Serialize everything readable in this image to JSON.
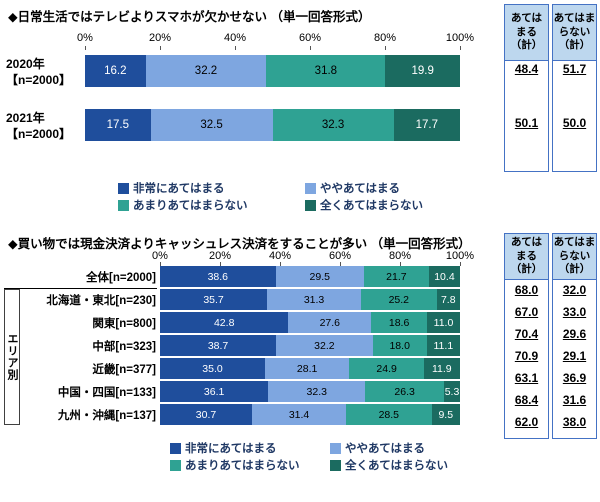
{
  "colors": {
    "segments": [
      "#1F4E9C",
      "#7EA6E0",
      "#2FA293",
      "#1B6B60"
    ],
    "segment_text": [
      "#ffffff",
      "#000000",
      "#000000",
      "#ffffff"
    ],
    "summary_header_fill": "#BDD7EE",
    "summary_border": "#4472C4",
    "legend_text": "#1F3864"
  },
  "summary_headers": {
    "agree": "あては\nまる\n（計）",
    "disagree": "あてはま\nらない\n（計）"
  },
  "legend": {
    "items": [
      {
        "label": "非常にあてはまる",
        "color": "#1F4E9C"
      },
      {
        "label": "ややあてはまる",
        "color": "#7EA6E0"
      },
      {
        "label": "あまりあてはまらない",
        "color": "#2FA293"
      },
      {
        "label": "全くあてはまらない",
        "color": "#1B6B60"
      }
    ]
  },
  "chart_data": [
    {
      "type": "bar",
      "stacked": true,
      "orientation": "horizontal",
      "title": "◆日常生活ではテレビよりスマホが欠かせない （単一回答形式）",
      "x_ticks": [
        "0%",
        "20%",
        "40%",
        "60%",
        "80%",
        "100%"
      ],
      "xlim": [
        0,
        100
      ],
      "series_labels": [
        "非常にあてはまる",
        "ややあてはまる",
        "あまりあてはまらない",
        "全くあてはまらない"
      ],
      "rows": [
        {
          "label": "2020年",
          "n_label": "【n=2000】",
          "values": [
            16.2,
            32.2,
            31.8,
            19.9
          ],
          "agree_total": "48.4",
          "disagree_total": "51.7"
        },
        {
          "label": "2021年",
          "n_label": "【n=2000】",
          "values": [
            17.5,
            32.5,
            32.3,
            17.7
          ],
          "agree_total": "50.1",
          "disagree_total": "50.0"
        }
      ]
    },
    {
      "type": "bar",
      "stacked": true,
      "orientation": "horizontal",
      "title": "◆買い物では現金決済よりキャッシュレス決済をすることが多い （単一回答形式）",
      "x_ticks": [
        "0%",
        "20%",
        "40%",
        "60%",
        "80%",
        "100%"
      ],
      "xlim": [
        0,
        100
      ],
      "group_label": "エリア別",
      "series_labels": [
        "非常にあてはまる",
        "ややあてはまる",
        "あまりあてはまらない",
        "全くあてはまらない"
      ],
      "rows": [
        {
          "label": "全体[n=2000]",
          "values": [
            38.6,
            29.5,
            21.7,
            10.4
          ],
          "agree_total": "68.0",
          "disagree_total": "32.0"
        },
        {
          "label": "北海道・東北[n=230]",
          "values": [
            35.7,
            31.3,
            25.2,
            7.8
          ],
          "agree_total": "67.0",
          "disagree_total": "33.0"
        },
        {
          "label": "関東[n=800]",
          "values": [
            42.8,
            27.6,
            18.6,
            11.0
          ],
          "agree_total": "70.4",
          "disagree_total": "29.6"
        },
        {
          "label": "中部[n=323]",
          "values": [
            38.7,
            32.2,
            18.0,
            11.1
          ],
          "agree_total": "70.9",
          "disagree_total": "29.1"
        },
        {
          "label": "近畿[n=377]",
          "values": [
            35.0,
            28.1,
            24.9,
            11.9
          ],
          "agree_total": "63.1",
          "disagree_total": "36.9"
        },
        {
          "label": "中国・四国[n=133]",
          "values": [
            36.1,
            32.3,
            26.3,
            5.3
          ],
          "agree_total": "68.4",
          "disagree_total": "31.6"
        },
        {
          "label": "九州・沖縄[n=137]",
          "values": [
            30.7,
            31.4,
            28.5,
            9.5
          ],
          "agree_total": "62.0",
          "disagree_total": "38.0"
        }
      ]
    }
  ]
}
